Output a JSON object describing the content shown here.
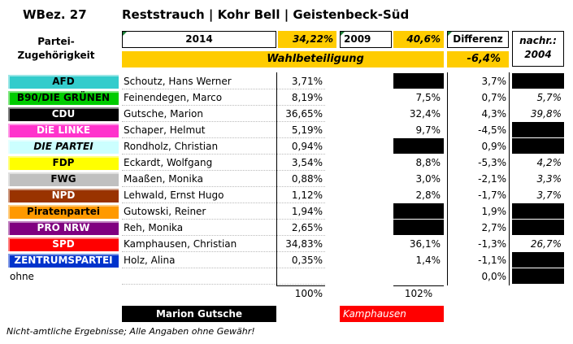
{
  "header": {
    "district": "WBez. 27",
    "name": "Reststrauch | Kohr Bell | Geistenbeck-Süd"
  },
  "columns": {
    "party_label": "Partei-\nZugehörigkeit",
    "year_current": "2014",
    "turnout_current": "34,22%",
    "year_prev": "2009",
    "turnout_prev": "40,6%",
    "diff_label": "Differenz",
    "nach_label": "nachr.:\n2004",
    "turnout_label": "Wahlbeteiligung",
    "turnout_diff": "-6,4%"
  },
  "rows": [
    {
      "party": "AFD",
      "bg": "#33cccc",
      "fg": "#000",
      "italic": false,
      "candidate": "Schoutz, Hans Werner",
      "pct": "3,71%",
      "p09": "",
      "p09_black": true,
      "diff": "3,7%",
      "nach": "",
      "nach_black": true
    },
    {
      "party": "B90/DIE GRÜNEN",
      "bg": "#00cc00",
      "fg": "#000",
      "italic": false,
      "candidate": "Feinendegen, Marco",
      "pct": "8,19%",
      "p09": "7,5%",
      "p09_black": false,
      "diff": "0,7%",
      "nach": "5,7%",
      "nach_black": false
    },
    {
      "party": "CDU",
      "bg": "#000000",
      "fg": "#fff",
      "italic": false,
      "candidate": "Gutsche, Marion",
      "pct": "36,65%",
      "p09": "32,4%",
      "p09_black": false,
      "diff": "4,3%",
      "nach": "39,8%",
      "nach_black": false
    },
    {
      "party": "DiE LINKE",
      "bg": "#ff33cc",
      "fg": "#fff",
      "italic": false,
      "candidate": "Schaper, Helmut",
      "pct": "5,19%",
      "p09": "9,7%",
      "p09_black": false,
      "diff": "-4,5%",
      "nach": "",
      "nach_black": true
    },
    {
      "party": "DIE PARTEI",
      "bg": "#ccffff",
      "fg": "#000",
      "italic": true,
      "candidate": "Rondholz, Christian",
      "pct": "0,94%",
      "p09": "",
      "p09_black": true,
      "diff": "0,9%",
      "nach": "",
      "nach_black": true
    },
    {
      "party": "FDP",
      "bg": "#ffff00",
      "fg": "#000",
      "italic": false,
      "candidate": "Eckardt, Wolfgang",
      "pct": "3,54%",
      "p09": "8,8%",
      "p09_black": false,
      "diff": "-5,3%",
      "nach": "4,2%",
      "nach_black": false
    },
    {
      "party": "FWG",
      "bg": "#c0c0c0",
      "fg": "#000",
      "italic": false,
      "candidate": "Maaßen, Monika",
      "pct": "0,88%",
      "p09": "3,0%",
      "p09_black": false,
      "diff": "-2,1%",
      "nach": "3,3%",
      "nach_black": false
    },
    {
      "party": "NPD",
      "bg": "#993300",
      "fg": "#fff",
      "italic": false,
      "candidate": "Lehwald, Ernst Hugo",
      "pct": "1,12%",
      "p09": "2,8%",
      "p09_black": false,
      "diff": "-1,7%",
      "nach": "3,7%",
      "nach_black": false
    },
    {
      "party": "Piratenpartei",
      "bg": "#ff9900",
      "fg": "#000",
      "italic": false,
      "candidate": "Gutowski, Reiner",
      "pct": "1,94%",
      "p09": "",
      "p09_black": true,
      "diff": "1,9%",
      "nach": "",
      "nach_black": true
    },
    {
      "party": "PRO NRW",
      "bg": "#800080",
      "fg": "#fff",
      "italic": false,
      "candidate": "Reh, Monika",
      "pct": "2,65%",
      "p09": "",
      "p09_black": true,
      "diff": "2,7%",
      "nach": "",
      "nach_black": true
    },
    {
      "party": "SPD",
      "bg": "#ff0000",
      "fg": "#fff",
      "italic": false,
      "candidate": "Kamphausen, Christian",
      "pct": "34,83%",
      "p09": "36,1%",
      "p09_black": false,
      "diff": "-1,3%",
      "nach": "26,7%",
      "nach_black": false
    },
    {
      "party": "ZENTRUMSPARTEI",
      "bg": "#0033cc",
      "fg": "#fff",
      "italic": false,
      "candidate": "Holz, Alina",
      "pct": "0,35%",
      "p09": "1,4%",
      "p09_black": false,
      "diff": "-1,1%",
      "nach": "",
      "nach_black": true
    },
    {
      "party": "ohne",
      "bg": "",
      "fg": "#000",
      "italic": false,
      "plain": true,
      "candidate": "",
      "pct": "",
      "p09": "",
      "p09_black": false,
      "diff": "0,0%",
      "nach": "",
      "nach_black": true
    }
  ],
  "totals": {
    "current": "100%",
    "prev": "102%"
  },
  "winners": {
    "current": "Marion Gutsche",
    "prev": "Kamphausen"
  },
  "footer": "Nicht-amtliche Ergebnisse; Alle Angaben ohne Gewähr!"
}
